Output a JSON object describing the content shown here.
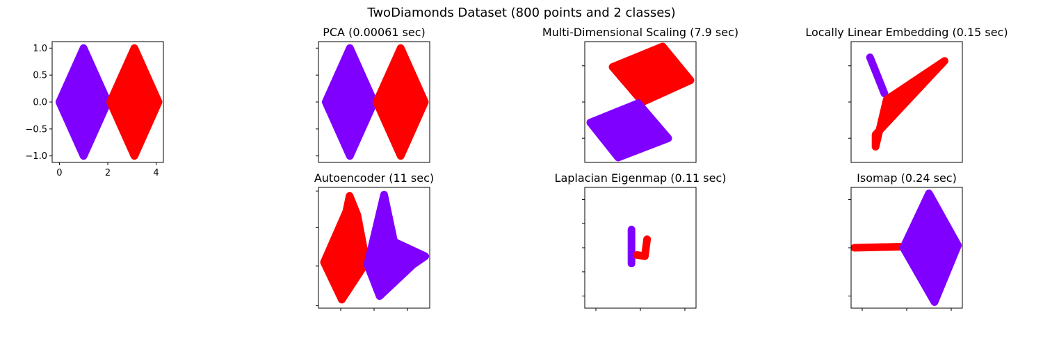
{
  "figure": {
    "suptitle": "TwoDiamonds Dataset (800 points and 2 classes)"
  },
  "colors": {
    "class_a": "#8000ff",
    "class_b": "#ff0000"
  },
  "chart_data": [
    {
      "type": "scatter",
      "id": "original",
      "title": "",
      "xlim": [
        -0.3,
        4.3
      ],
      "ylim": [
        -1.12,
        1.12
      ],
      "xticks": [
        0,
        2,
        4
      ],
      "xtick_labels": [
        "0",
        "2",
        "4"
      ],
      "yticks": [
        -1.0,
        -0.5,
        0.0,
        0.5,
        1.0
      ],
      "ytick_labels": [
        "−1.0",
        "−0.5",
        "0.0",
        "0.5",
        "1.0"
      ],
      "series": [
        {
          "shape": "diamond",
          "color": "#8000ff",
          "points": [
            [
              0,
              0
            ],
            [
              1,
              1
            ],
            [
              2,
              0
            ],
            [
              1,
              -1
            ]
          ]
        },
        {
          "shape": "diamond",
          "color": "#ff0000",
          "points": [
            [
              2.1,
              0
            ],
            [
              3.1,
              1
            ],
            [
              4.1,
              0
            ],
            [
              3.1,
              -1
            ]
          ]
        }
      ]
    },
    {
      "type": "scatter",
      "id": "pca",
      "title": "PCA (0.00061 sec)",
      "xlim": [
        -0.3,
        4.3
      ],
      "ylim": [
        -1.12,
        1.12
      ],
      "xticks": [],
      "xtick_labels": [],
      "yticks": [
        -1.0,
        -0.5,
        0.0,
        0.5,
        1.0
      ],
      "ytick_labels": [],
      "series": [
        {
          "shape": "diamond",
          "color": "#8000ff",
          "points": [
            [
              0,
              0
            ],
            [
              1,
              1
            ],
            [
              2,
              0
            ],
            [
              1,
              -1
            ]
          ]
        },
        {
          "shape": "diamond",
          "color": "#ff0000",
          "points": [
            [
              2.1,
              0
            ],
            [
              3.1,
              1
            ],
            [
              4.1,
              0
            ],
            [
              3.1,
              -1
            ]
          ]
        }
      ]
    },
    {
      "type": "scatter",
      "id": "mds",
      "title": "Multi-Dimensional Scaling (7.9 sec)",
      "xlim": [
        0,
        1
      ],
      "ylim": [
        0,
        1
      ],
      "xticks": [],
      "xtick_labels": [],
      "yticks": [
        0.2,
        0.5,
        0.8
      ],
      "ytick_labels": [],
      "series": [
        {
          "shape": "polygon",
          "color": "#ff0000",
          "points": [
            [
              0.25,
              0.79
            ],
            [
              0.7,
              0.96
            ],
            [
              0.95,
              0.68
            ],
            [
              0.52,
              0.5
            ]
          ]
        },
        {
          "shape": "polygon",
          "color": "#8000ff",
          "points": [
            [
              0.05,
              0.33
            ],
            [
              0.48,
              0.49
            ],
            [
              0.75,
              0.2
            ],
            [
              0.3,
              0.04
            ]
          ]
        }
      ]
    },
    {
      "type": "scatter",
      "id": "lle",
      "title": "Locally Linear Embedding (0.15 sec)",
      "xlim": [
        0,
        1
      ],
      "ylim": [
        0,
        1
      ],
      "xticks": [],
      "xtick_labels": [],
      "yticks": [
        0.2,
        0.5,
        0.8
      ],
      "ytick_labels": [],
      "series": [
        {
          "shape": "polyline",
          "color": "#8000ff",
          "points": [
            [
              0.17,
              0.87
            ],
            [
              0.3,
              0.57
            ]
          ]
        },
        {
          "shape": "polygon",
          "color": "#ff0000",
          "points": [
            [
              0.22,
              0.13
            ],
            [
              0.32,
              0.52
            ],
            [
              0.84,
              0.84
            ],
            [
              0.22,
              0.23
            ]
          ]
        }
      ]
    },
    {
      "type": "scatter",
      "id": "autoencoder",
      "title": "Autoencoder (11 sec)",
      "xlim": [
        0,
        1
      ],
      "ylim": [
        0,
        1
      ],
      "xticks": [
        0.2,
        0.5,
        0.8
      ],
      "xtick_labels": [],
      "yticks": [
        0.02,
        0.35,
        0.67,
        0.97
      ],
      "ytick_labels": [],
      "series": [
        {
          "shape": "polygon",
          "color": "#ff0000",
          "points": [
            [
              0.28,
              0.93
            ],
            [
              0.35,
              0.77
            ],
            [
              0.43,
              0.38
            ],
            [
              0.21,
              0.07
            ],
            [
              0.05,
              0.38
            ],
            [
              0.25,
              0.8
            ]
          ]
        },
        {
          "shape": "polygon",
          "color": "#8000ff",
          "points": [
            [
              0.59,
              0.94
            ],
            [
              0.68,
              0.55
            ],
            [
              0.96,
              0.43
            ],
            [
              0.85,
              0.36
            ],
            [
              0.55,
              0.1
            ],
            [
              0.44,
              0.36
            ]
          ]
        }
      ]
    },
    {
      "type": "scatter",
      "id": "laplacian",
      "title": "Laplacian Eigenmap (0.11 sec)",
      "xlim": [
        0,
        1
      ],
      "ylim": [
        0,
        1
      ],
      "xticks": [
        0.1,
        0.5,
        0.9
      ],
      "xtick_labels": [],
      "yticks": [
        0.1,
        0.3,
        0.5,
        0.7,
        0.9
      ],
      "ytick_labels": [],
      "series": [
        {
          "shape": "polyline",
          "color": "#8000ff",
          "points": [
            [
              0.42,
              0.65
            ],
            [
              0.42,
              0.37
            ]
          ]
        },
        {
          "shape": "polyline",
          "color": "#ff0000",
          "points": [
            [
              0.47,
              0.44
            ],
            [
              0.54,
              0.43
            ],
            [
              0.56,
              0.57
            ]
          ]
        }
      ]
    },
    {
      "type": "scatter",
      "id": "isomap",
      "title": "Isomap (0.24 sec)",
      "xlim": [
        0,
        1
      ],
      "ylim": [
        0,
        1
      ],
      "xticks": [
        0.1,
        0.5,
        0.9
      ],
      "xtick_labels": [],
      "yticks": [
        0.1,
        0.5,
        0.9
      ],
      "ytick_labels": [],
      "series": [
        {
          "shape": "polyline",
          "color": "#ff0000",
          "points": [
            [
              0.03,
              0.5
            ],
            [
              0.5,
              0.51
            ]
          ]
        },
        {
          "shape": "polygon",
          "color": "#8000ff",
          "points": [
            [
              0.7,
              0.95
            ],
            [
              0.96,
              0.52
            ],
            [
              0.75,
              0.05
            ],
            [
              0.47,
              0.5
            ]
          ]
        }
      ]
    }
  ]
}
